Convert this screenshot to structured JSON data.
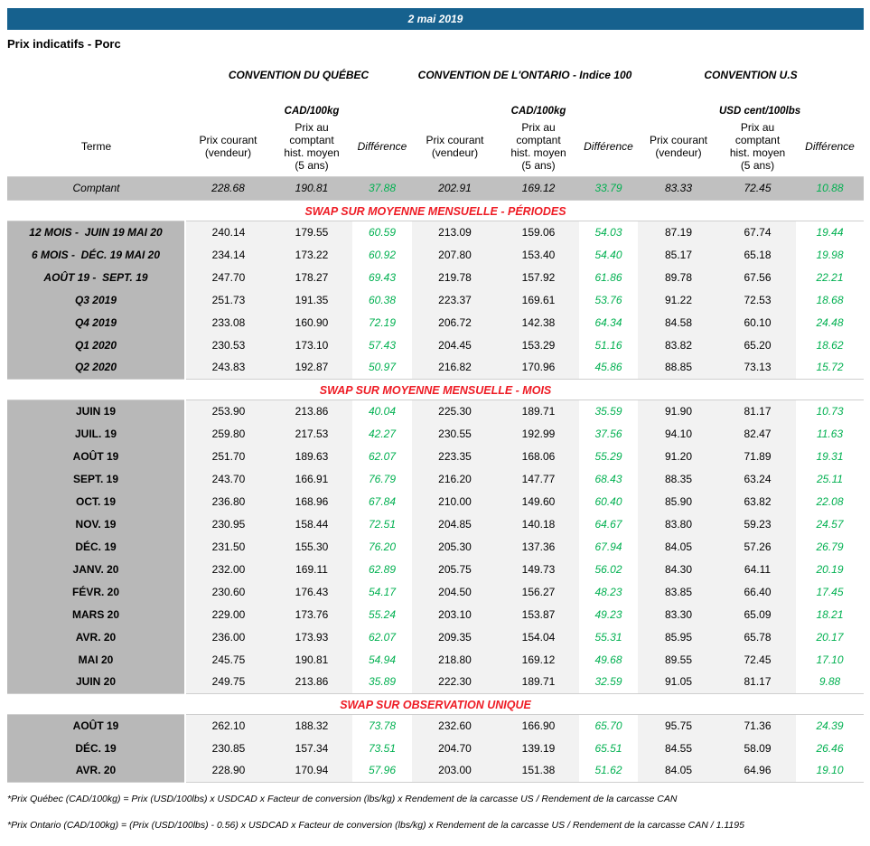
{
  "header": {
    "date": "2 mai 2019",
    "title": "Prix indicatifs - Porc"
  },
  "groups": [
    {
      "name": "CONVENTION DU QUÉBEC",
      "unit": "CAD/100kg"
    },
    {
      "name": "CONVENTION DE L'ONTARIO - Indice 100",
      "unit": "CAD/100kg"
    },
    {
      "name": "CONVENTION U.S",
      "unit": "USD cent/100lbs"
    }
  ],
  "columns": {
    "terme": "Terme",
    "prix_courant": "Prix courant\n(vendeur)",
    "prix_comptant": "Prix au\ncomptant\nhist. moyen\n(5 ans)",
    "difference": "Différence"
  },
  "comptant": {
    "label": "Comptant",
    "values": [
      "228.68",
      "190.81",
      "37.88",
      "202.91",
      "169.12",
      "33.79",
      "83.33",
      "72.45",
      "10.88"
    ]
  },
  "sections": [
    {
      "title": "SWAP SUR MOYENNE MENSUELLE - PÉRIODES",
      "italic_labels": true,
      "rows": [
        {
          "label": "12 MOIS -  JUIN 19 MAI 20",
          "values": [
            "240.14",
            "179.55",
            "60.59",
            "213.09",
            "159.06",
            "54.03",
            "87.19",
            "67.74",
            "19.44"
          ]
        },
        {
          "label": "6 MOIS -  DÉC. 19 MAI 20",
          "values": [
            "234.14",
            "173.22",
            "60.92",
            "207.80",
            "153.40",
            "54.40",
            "85.17",
            "65.18",
            "19.98"
          ]
        },
        {
          "label": "AOÛT 19 -  SEPT. 19",
          "values": [
            "247.70",
            "178.27",
            "69.43",
            "219.78",
            "157.92",
            "61.86",
            "89.78",
            "67.56",
            "22.21"
          ]
        },
        {
          "label": "Q3 2019",
          "values": [
            "251.73",
            "191.35",
            "60.38",
            "223.37",
            "169.61",
            "53.76",
            "91.22",
            "72.53",
            "18.68"
          ]
        },
        {
          "label": "Q4 2019",
          "values": [
            "233.08",
            "160.90",
            "72.19",
            "206.72",
            "142.38",
            "64.34",
            "84.58",
            "60.10",
            "24.48"
          ]
        },
        {
          "label": "Q1 2020",
          "values": [
            "230.53",
            "173.10",
            "57.43",
            "204.45",
            "153.29",
            "51.16",
            "83.82",
            "65.20",
            "18.62"
          ]
        },
        {
          "label": "Q2 2020",
          "values": [
            "243.83",
            "192.87",
            "50.97",
            "216.82",
            "170.96",
            "45.86",
            "88.85",
            "73.13",
            "15.72"
          ]
        }
      ]
    },
    {
      "title": "SWAP SUR MOYENNE MENSUELLE - MOIS",
      "italic_labels": false,
      "rows": [
        {
          "label": "JUIN 19",
          "values": [
            "253.90",
            "213.86",
            "40.04",
            "225.30",
            "189.71",
            "35.59",
            "91.90",
            "81.17",
            "10.73"
          ]
        },
        {
          "label": "JUIL. 19",
          "values": [
            "259.80",
            "217.53",
            "42.27",
            "230.55",
            "192.99",
            "37.56",
            "94.10",
            "82.47",
            "11.63"
          ]
        },
        {
          "label": "AOÛT 19",
          "values": [
            "251.70",
            "189.63",
            "62.07",
            "223.35",
            "168.06",
            "55.29",
            "91.20",
            "71.89",
            "19.31"
          ]
        },
        {
          "label": "SEPT. 19",
          "values": [
            "243.70",
            "166.91",
            "76.79",
            "216.20",
            "147.77",
            "68.43",
            "88.35",
            "63.24",
            "25.11"
          ]
        },
        {
          "label": "OCT. 19",
          "values": [
            "236.80",
            "168.96",
            "67.84",
            "210.00",
            "149.60",
            "60.40",
            "85.90",
            "63.82",
            "22.08"
          ]
        },
        {
          "label": "NOV. 19",
          "values": [
            "230.95",
            "158.44",
            "72.51",
            "204.85",
            "140.18",
            "64.67",
            "83.80",
            "59.23",
            "24.57"
          ]
        },
        {
          "label": "DÉC. 19",
          "values": [
            "231.50",
            "155.30",
            "76.20",
            "205.30",
            "137.36",
            "67.94",
            "84.05",
            "57.26",
            "26.79"
          ]
        },
        {
          "label": "JANV. 20",
          "values": [
            "232.00",
            "169.11",
            "62.89",
            "205.75",
            "149.73",
            "56.02",
            "84.30",
            "64.11",
            "20.19"
          ]
        },
        {
          "label": "FÉVR. 20",
          "values": [
            "230.60",
            "176.43",
            "54.17",
            "204.50",
            "156.27",
            "48.23",
            "83.85",
            "66.40",
            "17.45"
          ]
        },
        {
          "label": "MARS 20",
          "values": [
            "229.00",
            "173.76",
            "55.24",
            "203.10",
            "153.87",
            "49.23",
            "83.30",
            "65.09",
            "18.21"
          ]
        },
        {
          "label": "AVR. 20",
          "values": [
            "236.00",
            "173.93",
            "62.07",
            "209.35",
            "154.04",
            "55.31",
            "85.95",
            "65.78",
            "20.17"
          ]
        },
        {
          "label": "MAI 20",
          "values": [
            "245.75",
            "190.81",
            "54.94",
            "218.80",
            "169.12",
            "49.68",
            "89.55",
            "72.45",
            "17.10"
          ]
        },
        {
          "label": "JUIN 20",
          "values": [
            "249.75",
            "213.86",
            "35.89",
            "222.30",
            "189.71",
            "32.59",
            "91.05",
            "81.17",
            "9.88"
          ]
        }
      ]
    },
    {
      "title": "SWAP SUR OBSERVATION UNIQUE",
      "italic_labels": false,
      "rows": [
        {
          "label": "AOÛT 19",
          "values": [
            "262.10",
            "188.32",
            "73.78",
            "232.60",
            "166.90",
            "65.70",
            "95.75",
            "71.36",
            "24.39"
          ]
        },
        {
          "label": "DÉC. 19",
          "values": [
            "230.85",
            "157.34",
            "73.51",
            "204.70",
            "139.19",
            "65.51",
            "84.55",
            "58.09",
            "26.46"
          ]
        },
        {
          "label": "AVR. 20",
          "values": [
            "228.90",
            "170.94",
            "57.96",
            "203.00",
            "151.38",
            "51.62",
            "84.05",
            "64.96",
            "19.10"
          ]
        }
      ]
    }
  ],
  "footnotes": [
    "*Prix Québec (CAD/100kg) = Prix (USD/100lbs) x USDCAD x Facteur de conversion (lbs/kg) x Rendement de la carcasse US / Rendement de la carcasse CAN",
    "*Prix Ontario (CAD/100kg) = (Prix (USD/100lbs) - 0.56) x USDCAD x Facteur de conversion (lbs/kg) x Rendement de la carcasse US / Rendement de la carcasse CAN / 1.1195"
  ],
  "colors": {
    "header_bar": "#16618E",
    "section_title": "#EE1B24",
    "difference_positive": "#00B050",
    "terme_column_bg": "#B8B8B8",
    "comptant_row_bg": "#C0C0C0",
    "price_column_bg": "#F2F2F2"
  }
}
